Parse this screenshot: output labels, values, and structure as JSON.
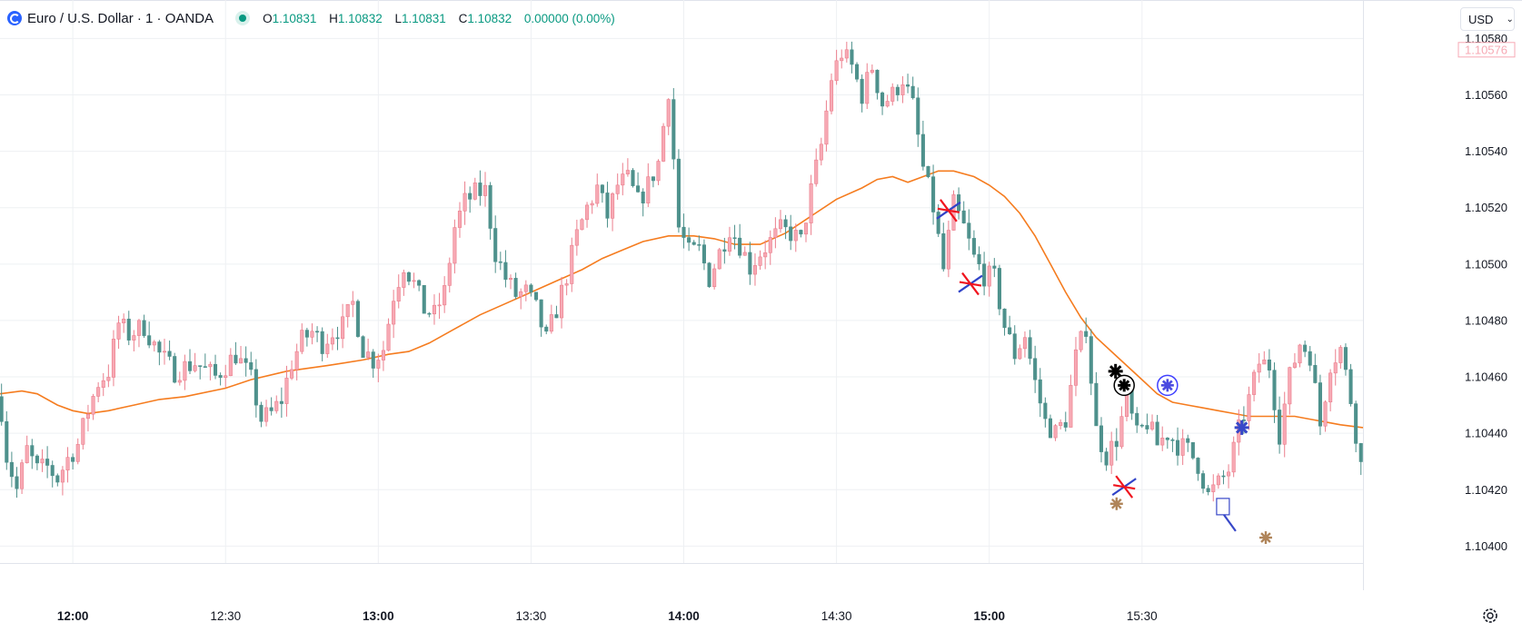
{
  "symbol": {
    "title": "Euro / U.S. Dollar · 1 · OANDA",
    "ohlc": [
      {
        "k": "O",
        "v": "1.10831"
      },
      {
        "k": "H",
        "v": "1.10832"
      },
      {
        "k": "L",
        "v": "1.10831"
      },
      {
        "k": "C",
        "v": "1.10832"
      }
    ],
    "change": "0.00000 (0.00%)"
  },
  "currency_label": "USD",
  "icons": {
    "symbol": "euro-flag-icon",
    "status": "market-status-dot-icon",
    "dropdown": "chevron-down-icon",
    "settings": "gear-icon"
  },
  "colors": {
    "up": "#f7a9b4",
    "up_border": "#eb7f8d",
    "down": "#4e918c",
    "ma": "#f57c1f",
    "grid": "#eef0f3",
    "current_price": "#f7a9b4"
  },
  "chart_data": {
    "type": "candlestick",
    "x_ticks": [
      {
        "label": "12:00",
        "t": 60,
        "bold": true
      },
      {
        "label": "12:30",
        "t": 90,
        "bold": false
      },
      {
        "label": "13:00",
        "t": 120,
        "bold": true
      },
      {
        "label": "13:30",
        "t": 150,
        "bold": false
      },
      {
        "label": "14:00",
        "t": 180,
        "bold": true
      },
      {
        "label": "14:30",
        "t": 210,
        "bold": false
      },
      {
        "label": "15:00",
        "t": 240,
        "bold": true
      },
      {
        "label": "15:30",
        "t": 270,
        "bold": false
      }
    ],
    "y_ticks": [
      "1.10580",
      "1.10560",
      "1.10540",
      "1.10520",
      "1.10500",
      "1.10480",
      "1.10460",
      "1.10440",
      "1.10420",
      "1.10400"
    ],
    "y_range": [
      1.10394,
      1.10593
    ],
    "x_range_minutes_after_11h": [
      45.7,
      313.4
    ],
    "current_price": "1.10576",
    "moving_average": [
      [
        45.7,
        1.10454
      ],
      [
        50,
        1.10455
      ],
      [
        53,
        1.10454
      ],
      [
        57,
        1.1045
      ],
      [
        60,
        1.10448
      ],
      [
        63,
        1.10447
      ],
      [
        67,
        1.10448
      ],
      [
        72,
        1.1045
      ],
      [
        77,
        1.10452
      ],
      [
        82,
        1.10453
      ],
      [
        90,
        1.10456
      ],
      [
        95,
        1.10459
      ],
      [
        102,
        1.10462
      ],
      [
        110,
        1.10464
      ],
      [
        117,
        1.10466
      ],
      [
        122,
        1.10468
      ],
      [
        126,
        1.10469
      ],
      [
        130,
        1.10472
      ],
      [
        135,
        1.10477
      ],
      [
        140,
        1.10482
      ],
      [
        145,
        1.10486
      ],
      [
        150,
        1.1049
      ],
      [
        155,
        1.10494
      ],
      [
        160,
        1.10498
      ],
      [
        164,
        1.10502
      ],
      [
        168,
        1.10505
      ],
      [
        172,
        1.10508
      ],
      [
        177,
        1.1051
      ],
      [
        182,
        1.1051
      ],
      [
        186,
        1.10509
      ],
      [
        190,
        1.10507
      ],
      [
        195,
        1.10507
      ],
      [
        200,
        1.10511
      ],
      [
        205,
        1.10517
      ],
      [
        210,
        1.10523
      ],
      [
        215,
        1.10527
      ],
      [
        218,
        1.1053
      ],
      [
        221,
        1.10531
      ],
      [
        224,
        1.10529
      ],
      [
        227,
        1.10531
      ],
      [
        230,
        1.10533
      ],
      [
        233,
        1.10533
      ],
      [
        237,
        1.10531
      ],
      [
        240,
        1.10528
      ],
      [
        243,
        1.10524
      ],
      [
        246,
        1.10518
      ],
      [
        249,
        1.1051
      ],
      [
        252,
        1.105
      ],
      [
        255,
        1.1049
      ],
      [
        258,
        1.10481
      ],
      [
        261,
        1.10474
      ],
      [
        264,
        1.10469
      ],
      [
        267,
        1.10464
      ],
      [
        270,
        1.10459
      ],
      [
        273,
        1.10454
      ],
      [
        276,
        1.10451
      ],
      [
        279,
        1.1045
      ],
      [
        282,
        1.10449
      ],
      [
        285,
        1.10448
      ],
      [
        288,
        1.10447
      ],
      [
        291,
        1.10446
      ],
      [
        294,
        1.10446
      ],
      [
        297,
        1.10446
      ],
      [
        300,
        1.10446
      ],
      [
        303,
        1.10445
      ],
      [
        306,
        1.10444
      ],
      [
        309,
        1.10443
      ],
      [
        313.4,
        1.10442
      ]
    ],
    "anchors": [
      [
        45.7,
        1.10453
      ],
      [
        47,
        1.10432
      ],
      [
        49,
        1.1042
      ],
      [
        51,
        1.10434
      ],
      [
        53,
        1.10427
      ],
      [
        55,
        1.10428
      ],
      [
        57,
        1.10424
      ],
      [
        59,
        1.10431
      ],
      [
        61,
        1.10436
      ],
      [
        63,
        1.10448
      ],
      [
        65,
        1.10458
      ],
      [
        67,
        1.10462
      ],
      [
        69,
        1.10479
      ],
      [
        71,
        1.10475
      ],
      [
        74,
        1.10478
      ],
      [
        77,
        1.10468
      ],
      [
        80,
        1.10462
      ],
      [
        84,
        1.10465
      ],
      [
        88,
        1.1046
      ],
      [
        92,
        1.10468
      ],
      [
        95,
        1.10459
      ],
      [
        97,
        1.10445
      ],
      [
        99,
        1.10447
      ],
      [
        101,
        1.10452
      ],
      [
        103,
        1.10465
      ],
      [
        105,
        1.10473
      ],
      [
        107,
        1.10476
      ],
      [
        109,
        1.10472
      ],
      [
        111,
        1.10476
      ],
      [
        113,
        1.10478
      ],
      [
        115,
        1.10486
      ],
      [
        117,
        1.1047
      ],
      [
        119,
        1.10466
      ],
      [
        121,
        1.1047
      ],
      [
        123,
        1.10489
      ],
      [
        125,
        1.105
      ],
      [
        127,
        1.10493
      ],
      [
        129,
        1.10484
      ],
      [
        131,
        1.10482
      ],
      [
        133,
        1.1049
      ],
      [
        135,
        1.10513
      ],
      [
        137,
        1.10522
      ],
      [
        139,
        1.10525
      ],
      [
        141,
        1.10526
      ],
      [
        143,
        1.10504
      ],
      [
        145,
        1.10495
      ],
      [
        147,
        1.10489
      ],
      [
        149,
        1.1049
      ],
      [
        151,
        1.10484
      ],
      [
        153,
        1.10473
      ],
      [
        155,
        1.10484
      ],
      [
        157,
        1.10496
      ],
      [
        159,
        1.1051
      ],
      [
        161,
        1.1052
      ],
      [
        163,
        1.10527
      ],
      [
        165,
        1.10517
      ],
      [
        167,
        1.10528
      ],
      [
        169,
        1.1053
      ],
      [
        171,
        1.10522
      ],
      [
        173,
        1.10528
      ],
      [
        175,
        1.10536
      ],
      [
        177,
        1.10562
      ],
      [
        179,
        1.10513
      ],
      [
        181,
        1.10504
      ],
      [
        183,
        1.10505
      ],
      [
        185,
        1.10495
      ],
      [
        187,
        1.10504
      ],
      [
        189,
        1.10513
      ],
      [
        191,
        1.10507
      ],
      [
        193,
        1.10499
      ],
      [
        195,
        1.10504
      ],
      [
        197,
        1.10508
      ],
      [
        199,
        1.10512
      ],
      [
        201,
        1.10511
      ],
      [
        203,
        1.10508
      ],
      [
        205,
        1.10526
      ],
      [
        207,
        1.10542
      ],
      [
        209,
        1.10566
      ],
      [
        211,
        1.10575
      ],
      [
        213,
        1.1057
      ],
      [
        215,
        1.1056
      ],
      [
        217,
        1.1057
      ],
      [
        219,
        1.10557
      ],
      [
        221,
        1.1056
      ],
      [
        223,
        1.10566
      ],
      [
        225,
        1.10556
      ],
      [
        227,
        1.10534
      ],
      [
        229,
        1.1052
      ],
      [
        231,
        1.10498
      ],
      [
        233,
        1.10521
      ],
      [
        235,
        1.10513
      ],
      [
        237,
        1.10502
      ],
      [
        239,
        1.10496
      ],
      [
        241,
        1.10495
      ],
      [
        243,
        1.10478
      ],
      [
        245,
        1.10468
      ],
      [
        247,
        1.10475
      ],
      [
        249,
        1.10458
      ],
      [
        251,
        1.10444
      ],
      [
        253,
        1.1044
      ],
      [
        255,
        1.10445
      ],
      [
        257,
        1.10467
      ],
      [
        259,
        1.10478
      ],
      [
        261,
        1.10441
      ],
      [
        263,
        1.10432
      ],
      [
        265,
        1.10438
      ],
      [
        267,
        1.10452
      ],
      [
        269,
        1.10439
      ],
      [
        271,
        1.10444
      ],
      [
        273,
        1.10436
      ],
      [
        275,
        1.1044
      ],
      [
        277,
        1.10436
      ],
      [
        279,
        1.10434
      ],
      [
        281,
        1.10429
      ],
      [
        283,
        1.10418
      ],
      [
        285,
        1.10422
      ],
      [
        287,
        1.10427
      ],
      [
        289,
        1.10441
      ],
      [
        291,
        1.10452
      ],
      [
        293,
        1.10465
      ],
      [
        295,
        1.10464
      ],
      [
        297,
        1.1044
      ],
      [
        299,
        1.1046
      ],
      [
        301,
        1.10472
      ],
      [
        303,
        1.10468
      ],
      [
        305,
        1.10443
      ],
      [
        307,
        1.10465
      ],
      [
        309,
        1.1047
      ],
      [
        311,
        1.10452
      ],
      [
        313.4,
        1.10424
      ]
    ],
    "markers": [
      {
        "t": 232.0,
        "p": 1.10519,
        "kind": "asterisk-red-blue"
      },
      {
        "t": 236.3,
        "p": 1.10493,
        "kind": "asterisk-red-blue"
      },
      {
        "t": 266.5,
        "p": 1.10421,
        "kind": "asterisk-red-blue"
      },
      {
        "t": 264.8,
        "p": 1.10462,
        "kind": "asterisk-black"
      },
      {
        "t": 266.5,
        "p": 1.10457,
        "kind": "circled-asterisk-black"
      },
      {
        "t": 275.0,
        "p": 1.10457,
        "kind": "circled-asterisk-blue"
      },
      {
        "t": 265.0,
        "p": 1.10415,
        "kind": "asterisk-brown"
      },
      {
        "t": 289.6,
        "p": 1.10442,
        "kind": "asterisk-blue"
      },
      {
        "t": 294.3,
        "p": 1.10403,
        "kind": "asterisk-brown"
      },
      {
        "t": 285.9,
        "p": 1.10414,
        "kind": "box-blue"
      }
    ]
  }
}
